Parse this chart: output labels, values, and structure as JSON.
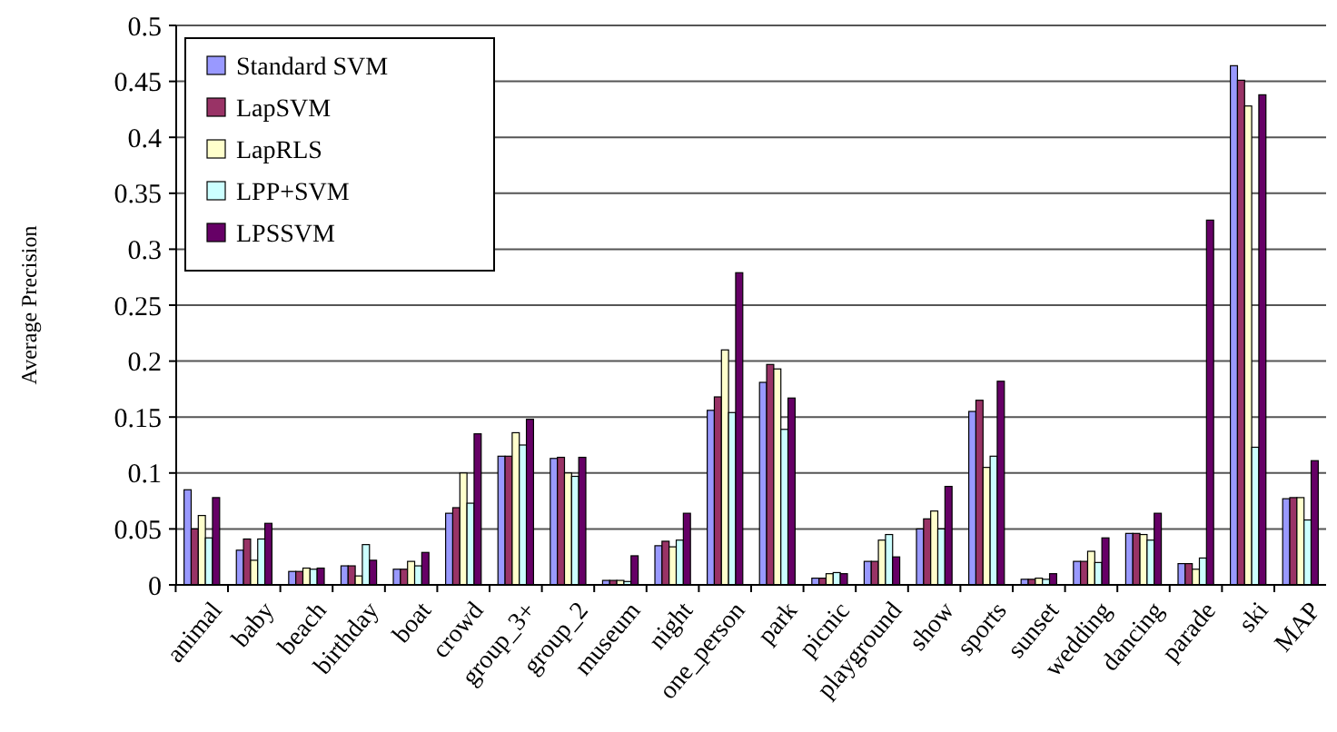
{
  "chart_data": {
    "type": "bar",
    "ylabel": "Average Precision",
    "categories": [
      "animal",
      "baby",
      "beach",
      "birthday",
      "boat",
      "crowd",
      "group_3+",
      "group_2",
      "museum",
      "night",
      "one_person",
      "park",
      "picnic",
      "playground",
      "show",
      "sports",
      "sunset",
      "wedding",
      "dancing",
      "parade",
      "ski",
      "MAP"
    ],
    "series": [
      {
        "name": "Standard SVM",
        "color": "#9999ff",
        "values": [
          0.085,
          0.031,
          0.012,
          0.017,
          0.014,
          0.064,
          0.115,
          0.113,
          0.004,
          0.035,
          0.156,
          0.181,
          0.006,
          0.021,
          0.05,
          0.155,
          0.005,
          0.021,
          0.046,
          0.019,
          0.464,
          0.077
        ]
      },
      {
        "name": "LapSVM",
        "color": "#993366",
        "values": [
          0.05,
          0.041,
          0.012,
          0.017,
          0.014,
          0.069,
          0.115,
          0.114,
          0.004,
          0.039,
          0.168,
          0.197,
          0.006,
          0.021,
          0.059,
          0.165,
          0.005,
          0.021,
          0.046,
          0.019,
          0.451,
          0.078
        ]
      },
      {
        "name": "LapRLS",
        "color": "#ffffcc",
        "values": [
          0.062,
          0.022,
          0.015,
          0.008,
          0.021,
          0.1,
          0.136,
          0.1,
          0.004,
          0.034,
          0.21,
          0.193,
          0.01,
          0.04,
          0.066,
          0.105,
          0.006,
          0.03,
          0.045,
          0.014,
          0.428,
          0.078
        ]
      },
      {
        "name": "LPP+SVM",
        "color": "#ccffff",
        "values": [
          0.042,
          0.041,
          0.014,
          0.036,
          0.017,
          0.073,
          0.125,
          0.097,
          0.003,
          0.04,
          0.154,
          0.139,
          0.011,
          0.045,
          0.05,
          0.115,
          0.005,
          0.02,
          0.04,
          0.024,
          0.123,
          0.058
        ]
      },
      {
        "name": "LPSSVM",
        "color": "#660066",
        "values": [
          0.078,
          0.055,
          0.015,
          0.022,
          0.029,
          0.135,
          0.148,
          0.114,
          0.026,
          0.064,
          0.279,
          0.167,
          0.01,
          0.025,
          0.088,
          0.182,
          0.01,
          0.042,
          0.064,
          0.326,
          0.438,
          0.111
        ]
      }
    ],
    "ylim": [
      0,
      0.5
    ],
    "yticks": [
      0,
      {
        "value": 0.05,
        "label": "0.05"
      },
      {
        "value": 0.1,
        "label": "0.1"
      },
      {
        "value": 0.15,
        "label": "0.15"
      },
      {
        "value": 0.2,
        "label": "0.2"
      },
      {
        "value": 0.25,
        "label": "0.25"
      },
      {
        "value": 0.3,
        "label": "0.3"
      },
      {
        "value": 0.35,
        "label": "0.35"
      },
      {
        "value": 0.4,
        "label": "0.4"
      },
      {
        "value": 0.45,
        "label": "0.45"
      },
      {
        "value": 0.5,
        "label": "0.5"
      }
    ],
    "grid": "y",
    "legend": "top left"
  }
}
